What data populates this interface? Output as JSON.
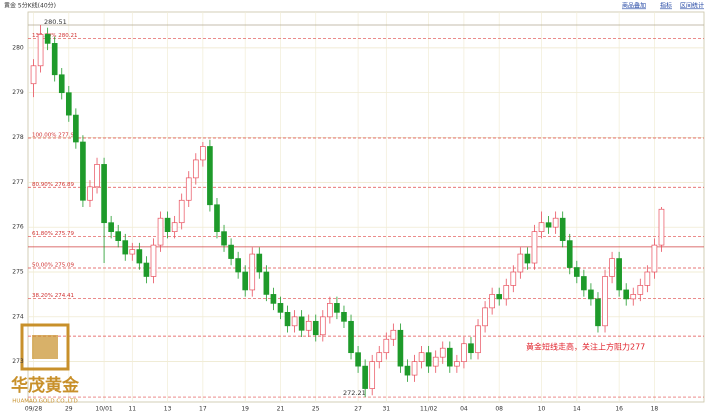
{
  "chart_data": {
    "type": "candlestick",
    "title": "黄金 5分K线(40分)",
    "toolbar": [
      "商品叠加",
      "指标",
      "区间统计"
    ],
    "annotation": "黄金短线走高，关注上方阻力277",
    "high_label": "280.51",
    "high_value": 280.51,
    "low_label": "272.21",
    "low_value": 272.21,
    "logo": {
      "name": "华茂黄金",
      "sub": "HUAMAO GOLD CO.,LTD"
    },
    "up_color": "#e8505e",
    "down_color": "#1e9a2a",
    "ylim": [
      272.1,
      280.8
    ],
    "yticks": [
      273,
      274,
      275,
      276,
      277,
      278,
      279,
      280
    ],
    "grid": true,
    "levels": [
      {
        "label": "138.20% 280.21",
        "value": 280.21
      },
      {
        "label": "100.00% 277.99",
        "value": 277.99
      },
      {
        "label": "80.90% 276.89",
        "value": 276.89
      },
      {
        "label": "61.80% 275.79",
        "value": 275.79
      },
      {
        "label": "50.00% 275.09",
        "value": 275.09
      },
      {
        "label": "38.20% 274.41",
        "value": 274.41
      }
    ],
    "plain_levels": [
      273.57,
      272.21
    ],
    "price_line": 275.56,
    "categories": [
      "09/28",
      null,
      null,
      null,
      null,
      "29",
      null,
      null,
      null,
      null,
      "10/01",
      null,
      null,
      null,
      "11",
      null,
      null,
      null,
      null,
      "13",
      null,
      null,
      null,
      null,
      "17",
      null,
      null,
      null,
      null,
      null,
      "19",
      null,
      null,
      null,
      null,
      "21",
      null,
      null,
      null,
      null,
      "25",
      null,
      null,
      null,
      null,
      null,
      "27",
      null,
      null,
      null,
      "31",
      null,
      null,
      null,
      null,
      null,
      "11/02",
      null,
      null,
      null,
      null,
      "04",
      null,
      null,
      null,
      null,
      "08",
      null,
      null,
      null,
      null,
      null,
      "10",
      null,
      null,
      null,
      null,
      "14",
      null,
      null,
      null,
      null,
      null,
      "16",
      null,
      null,
      null,
      null,
      "18",
      null
    ],
    "open": [
      279.2,
      279.6,
      280.3,
      280.1,
      279.4,
      279.0,
      278.5,
      277.9,
      276.6,
      276.9,
      277.4,
      276.1,
      275.9,
      275.7,
      275.4,
      275.5,
      275.2,
      274.9,
      275.6,
      276.2,
      275.9,
      276.1,
      276.6,
      277.1,
      277.5,
      277.8,
      276.5,
      275.9,
      275.6,
      275.3,
      275.0,
      274.6,
      275.4,
      275.0,
      274.5,
      274.3,
      274.1,
      273.8,
      274.0,
      273.7,
      273.9,
      273.6,
      274.0,
      274.3,
      274.1,
      273.9,
      273.2,
      272.9,
      272.4,
      273.0,
      273.2,
      273.5,
      273.7,
      272.9,
      272.7,
      273.0,
      273.2,
      272.9,
      273.1,
      273.3,
      272.9,
      273.0,
      273.4,
      273.2,
      273.8,
      274.2,
      274.5,
      274.4,
      274.7,
      275.0,
      275.4,
      275.2,
      275.9,
      276.1,
      276.0,
      276.2,
      275.7,
      275.1,
      274.9,
      274.6,
      274.4,
      273.8,
      274.9,
      275.3,
      274.6,
      274.4,
      274.5,
      274.7,
      275.0,
      275.6
    ],
    "high": [
      279.75,
      280.51,
      280.45,
      280.25,
      279.55,
      279.15,
      278.65,
      278.05,
      277.05,
      277.55,
      277.55,
      276.25,
      276.05,
      275.85,
      275.65,
      275.65,
      275.35,
      275.75,
      276.35,
      276.35,
      276.25,
      276.75,
      277.25,
      277.65,
      277.9,
      277.95,
      276.65,
      276.05,
      275.75,
      275.45,
      275.15,
      275.55,
      275.55,
      275.15,
      274.65,
      274.45,
      274.25,
      274.15,
      274.15,
      274.05,
      274.05,
      274.15,
      274.45,
      274.45,
      274.25,
      274.05,
      273.35,
      273.05,
      273.15,
      273.35,
      273.65,
      273.85,
      273.85,
      273.05,
      273.15,
      273.35,
      273.35,
      273.25,
      273.45,
      273.45,
      273.15,
      273.55,
      273.55,
      273.95,
      274.35,
      274.65,
      274.65,
      274.85,
      275.15,
      275.55,
      275.55,
      276.05,
      276.35,
      276.25,
      276.35,
      276.35,
      275.85,
      275.25,
      275.05,
      274.75,
      274.55,
      275.05,
      275.45,
      275.45,
      274.75,
      274.65,
      274.85,
      275.15,
      275.75,
      276.45
    ],
    "low": [
      278.9,
      279.45,
      279.95,
      279.25,
      278.85,
      278.35,
      277.75,
      276.45,
      276.45,
      276.75,
      275.2,
      275.75,
      275.55,
      275.25,
      275.25,
      275.05,
      274.75,
      274.75,
      275.45,
      275.75,
      275.75,
      275.95,
      276.45,
      276.95,
      277.35,
      276.35,
      275.75,
      275.45,
      275.15,
      274.85,
      274.45,
      274.45,
      274.85,
      274.35,
      274.15,
      273.95,
      273.65,
      273.65,
      273.55,
      273.55,
      273.45,
      273.45,
      273.85,
      273.95,
      273.75,
      273.05,
      272.75,
      272.21,
      272.25,
      272.85,
      273.05,
      273.35,
      272.75,
      272.55,
      272.55,
      272.85,
      272.75,
      272.75,
      272.95,
      272.75,
      272.75,
      272.85,
      273.05,
      273.05,
      273.65,
      274.05,
      274.25,
      274.25,
      274.55,
      274.85,
      275.05,
      275.05,
      275.75,
      275.85,
      275.85,
      275.55,
      274.95,
      274.75,
      274.45,
      274.25,
      273.65,
      273.65,
      274.75,
      274.45,
      274.25,
      274.25,
      274.35,
      274.55,
      274.85,
      275.45
    ],
    "close": [
      279.6,
      280.3,
      280.1,
      279.4,
      279.0,
      278.5,
      277.9,
      276.6,
      276.9,
      277.4,
      276.1,
      275.9,
      275.7,
      275.4,
      275.5,
      275.2,
      274.9,
      275.6,
      276.2,
      275.9,
      276.1,
      276.6,
      277.1,
      277.5,
      277.8,
      276.5,
      275.9,
      275.6,
      275.3,
      275.0,
      274.6,
      275.4,
      275.0,
      274.5,
      274.3,
      274.1,
      273.8,
      274.0,
      273.7,
      273.9,
      273.6,
      274.0,
      274.3,
      274.1,
      273.9,
      273.2,
      272.9,
      272.4,
      273.0,
      273.2,
      273.5,
      273.7,
      272.9,
      272.7,
      273.0,
      273.2,
      272.9,
      273.1,
      273.3,
      272.9,
      273.0,
      273.4,
      273.2,
      273.8,
      274.2,
      274.5,
      274.4,
      274.7,
      275.0,
      275.4,
      275.2,
      275.9,
      276.1,
      276.0,
      276.2,
      275.7,
      275.1,
      274.9,
      274.6,
      274.4,
      273.8,
      274.9,
      275.3,
      274.6,
      274.4,
      274.5,
      274.7,
      275.0,
      275.6,
      276.4
    ]
  }
}
